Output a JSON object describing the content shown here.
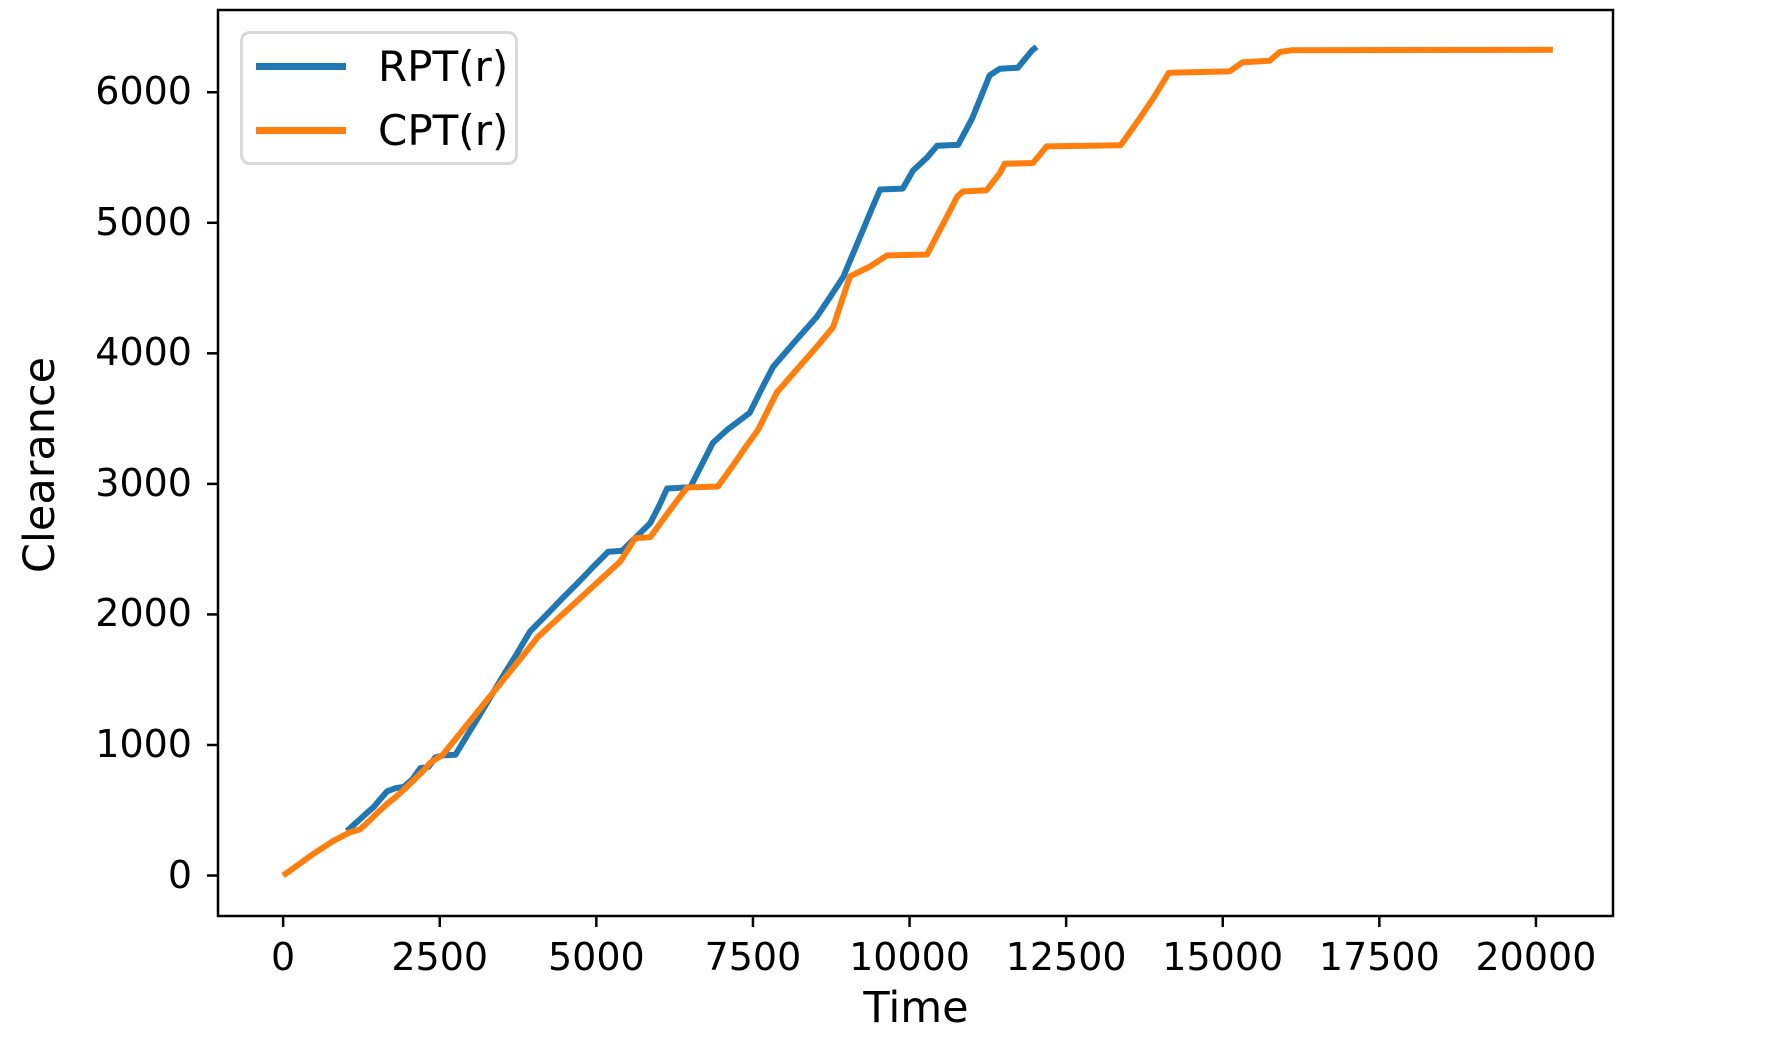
{
  "chart_data": {
    "type": "line",
    "title": "",
    "xlabel": "Time",
    "ylabel": "Clearance",
    "x_ticks": [
      0,
      2500,
      5000,
      7500,
      10000,
      12500,
      15000,
      17500,
      20000
    ],
    "y_ticks": [
      0,
      1000,
      2000,
      3000,
      4000,
      5000,
      6000
    ],
    "xlim": [
      -1040,
      21230
    ],
    "ylim": [
      -310,
      6630
    ],
    "grid": false,
    "legend_position": "upper-left",
    "axis_color": "#000000",
    "series": [
      {
        "name": "RPT(r)",
        "color": "#1f77b4",
        "points": [
          [
            1020,
            340
          ],
          [
            1140,
            395
          ],
          [
            1230,
            432
          ],
          [
            1350,
            485
          ],
          [
            1440,
            522
          ],
          [
            1560,
            590
          ],
          [
            1660,
            645
          ],
          [
            1800,
            670
          ],
          [
            1920,
            678
          ],
          [
            2060,
            735
          ],
          [
            2190,
            822
          ],
          [
            2320,
            832
          ],
          [
            2430,
            905
          ],
          [
            2550,
            920
          ],
          [
            2750,
            925
          ],
          [
            2940,
            1075
          ],
          [
            3100,
            1200
          ],
          [
            3300,
            1360
          ],
          [
            3500,
            1520
          ],
          [
            3700,
            1675
          ],
          [
            3943,
            1870
          ],
          [
            4200,
            1995
          ],
          [
            4450,
            2120
          ],
          [
            4700,
            2240
          ],
          [
            4950,
            2365
          ],
          [
            5190,
            2480
          ],
          [
            5410,
            2487
          ],
          [
            5650,
            2600
          ],
          [
            5860,
            2700
          ],
          [
            6000,
            2830
          ],
          [
            6130,
            2965
          ],
          [
            6500,
            2975
          ],
          [
            6680,
            3145
          ],
          [
            6860,
            3315
          ],
          [
            7090,
            3415
          ],
          [
            7300,
            3490
          ],
          [
            7450,
            3545
          ],
          [
            7630,
            3720
          ],
          [
            7820,
            3895
          ],
          [
            8170,
            4090
          ],
          [
            8520,
            4280
          ],
          [
            8730,
            4430
          ],
          [
            8940,
            4585
          ],
          [
            9200,
            4880
          ],
          [
            9400,
            5110
          ],
          [
            9530,
            5255
          ],
          [
            9890,
            5262
          ],
          [
            10055,
            5400
          ],
          [
            10280,
            5500
          ],
          [
            10440,
            5590
          ],
          [
            10775,
            5597
          ],
          [
            11000,
            5800
          ],
          [
            11280,
            6130
          ],
          [
            11440,
            6180
          ],
          [
            11730,
            6188
          ],
          [
            11955,
            6320
          ],
          [
            12030,
            6348
          ]
        ]
      },
      {
        "name": "CPT(r)",
        "color": "#ff7f0e",
        "points": [
          [
            0,
            0
          ],
          [
            160,
            55
          ],
          [
            320,
            110
          ],
          [
            480,
            165
          ],
          [
            640,
            215
          ],
          [
            800,
            265
          ],
          [
            900,
            290
          ],
          [
            1070,
            332
          ],
          [
            1230,
            355
          ],
          [
            1400,
            430
          ],
          [
            1500,
            478
          ],
          [
            1650,
            545
          ],
          [
            1800,
            602
          ],
          [
            1950,
            668
          ],
          [
            2100,
            738
          ],
          [
            2250,
            808
          ],
          [
            2350,
            865
          ],
          [
            2550,
            926
          ],
          [
            2750,
            1045
          ],
          [
            3000,
            1193
          ],
          [
            3260,
            1348
          ],
          [
            3500,
            1490
          ],
          [
            3800,
            1668
          ],
          [
            4070,
            1829
          ],
          [
            4300,
            1930
          ],
          [
            4550,
            2040
          ],
          [
            4800,
            2150
          ],
          [
            5050,
            2260
          ],
          [
            5380,
            2405
          ],
          [
            5620,
            2585
          ],
          [
            5860,
            2592
          ],
          [
            6100,
            2750
          ],
          [
            6300,
            2880
          ],
          [
            6450,
            2972
          ],
          [
            6940,
            2980
          ],
          [
            7200,
            3155
          ],
          [
            7400,
            3293
          ],
          [
            7580,
            3413
          ],
          [
            7880,
            3700
          ],
          [
            8200,
            3876
          ],
          [
            8520,
            4050
          ],
          [
            8780,
            4200
          ],
          [
            9050,
            4590
          ],
          [
            9370,
            4665
          ],
          [
            9640,
            4750
          ],
          [
            10280,
            4757
          ],
          [
            10600,
            5050
          ],
          [
            10760,
            5200
          ],
          [
            10850,
            5240
          ],
          [
            11230,
            5250
          ],
          [
            11440,
            5380
          ],
          [
            11520,
            5452
          ],
          [
            11970,
            5458
          ],
          [
            12190,
            5585
          ],
          [
            13370,
            5594
          ],
          [
            13625,
            5765
          ],
          [
            13900,
            5960
          ],
          [
            14140,
            6150
          ],
          [
            15110,
            6160
          ],
          [
            15320,
            6230
          ],
          [
            15750,
            6242
          ],
          [
            15910,
            6308
          ],
          [
            16100,
            6322
          ],
          [
            20270,
            6325
          ]
        ]
      }
    ]
  }
}
